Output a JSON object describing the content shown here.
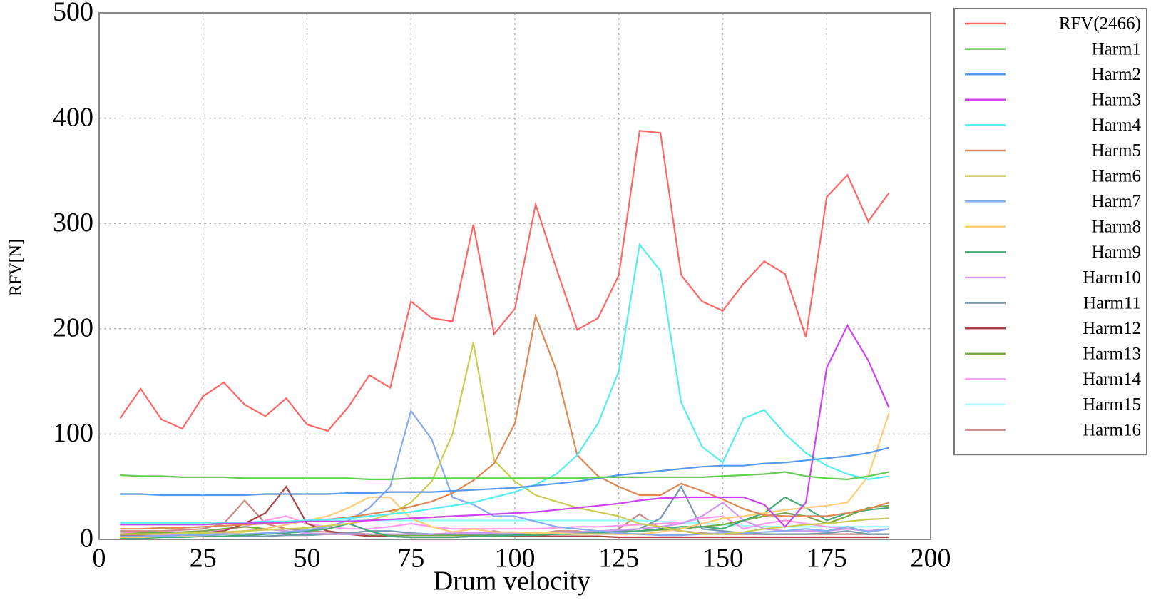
{
  "chart_data": {
    "type": "line",
    "x_label": "Drum velocity",
    "y_label": "RFV[N]",
    "x": [
      5,
      10,
      15,
      20,
      25,
      30,
      35,
      40,
      45,
      50,
      55,
      60,
      65,
      70,
      75,
      80,
      85,
      90,
      95,
      100,
      105,
      110,
      115,
      120,
      125,
      130,
      135,
      140,
      145,
      150,
      155,
      160,
      165,
      170,
      175,
      180,
      185,
      190
    ],
    "xlim": [
      0,
      200
    ],
    "xticks": [
      0,
      25,
      50,
      75,
      100,
      125,
      150,
      175,
      200
    ],
    "ylim": [
      0,
      500
    ],
    "yticks": [
      0,
      100,
      200,
      300,
      400,
      500
    ],
    "grid": true,
    "legend": "outside-right",
    "series": [
      {
        "name": "RFV(2466)",
        "color": "#ff6666",
        "values": [
          115,
          143,
          114,
          105,
          136,
          149,
          128,
          117,
          134,
          109,
          103,
          126,
          156,
          144,
          226,
          210,
          207,
          299,
          195,
          219,
          318,
          257,
          199,
          210,
          251,
          388,
          386,
          251,
          226,
          217,
          243,
          264,
          252,
          192,
          325,
          346,
          302,
          329
        ]
      },
      {
        "name": "Harm1",
        "color": "#66cc55",
        "values": [
          61,
          60,
          60,
          59,
          59,
          59,
          58,
          58,
          58,
          58,
          58,
          58,
          57,
          57,
          58,
          58,
          58,
          58,
          58,
          58,
          58,
          58,
          58,
          59,
          59,
          59,
          59,
          59,
          59,
          60,
          61,
          62,
          64,
          60,
          58,
          57,
          60,
          64
        ]
      },
      {
        "name": "Harm2",
        "color": "#5599ee",
        "values": [
          43,
          43,
          42,
          42,
          42,
          42,
          42,
          43,
          43,
          43,
          43,
          44,
          44,
          45,
          45,
          45,
          46,
          47,
          48,
          49,
          51,
          53,
          55,
          58,
          61,
          63,
          65,
          67,
          69,
          70,
          70,
          72,
          73,
          75,
          77,
          79,
          82,
          87
        ]
      },
      {
        "name": "Harm3",
        "color": "#cc44ee",
        "values": [
          14,
          14,
          14,
          14,
          14,
          15,
          15,
          16,
          16,
          17,
          17,
          17,
          18,
          19,
          20,
          21,
          22,
          23,
          24,
          25,
          26,
          28,
          30,
          32,
          34,
          37,
          39,
          40,
          40,
          40,
          40,
          33,
          12,
          35,
          163,
          203,
          170,
          125
        ]
      },
      {
        "name": "Harm4",
        "color": "#55eeee",
        "values": [
          16,
          16,
          16,
          16,
          16,
          16,
          16,
          17,
          17,
          18,
          19,
          20,
          22,
          24,
          26,
          29,
          32,
          35,
          40,
          45,
          52,
          62,
          80,
          110,
          160,
          280,
          255,
          130,
          88,
          73,
          115,
          123,
          100,
          82,
          70,
          62,
          57,
          60
        ]
      },
      {
        "name": "Harm5",
        "color": "#dd8855",
        "values": [
          10,
          10,
          11,
          11,
          12,
          13,
          14,
          15,
          16,
          18,
          19,
          21,
          24,
          27,
          31,
          36,
          44,
          56,
          72,
          110,
          212,
          160,
          80,
          60,
          50,
          42,
          42,
          53,
          46,
          38,
          29,
          23,
          22,
          22,
          22,
          25,
          29,
          35
        ]
      },
      {
        "name": "Harm6",
        "color": "#cccc55",
        "values": [
          5,
          5,
          5,
          6,
          6,
          7,
          8,
          9,
          10,
          11,
          13,
          15,
          18,
          24,
          35,
          55,
          100,
          187,
          75,
          55,
          42,
          36,
          30,
          26,
          22,
          15,
          12,
          8,
          5,
          5,
          7,
          10,
          12,
          14,
          15,
          17,
          19,
          20
        ]
      },
      {
        "name": "Harm7",
        "color": "#88aaee",
        "values": [
          3,
          3,
          3,
          4,
          4,
          5,
          5,
          6,
          7,
          9,
          12,
          18,
          30,
          50,
          122,
          95,
          40,
          33,
          22,
          22,
          17,
          12,
          10,
          8,
          6,
          5,
          4,
          4,
          5,
          6,
          6,
          7,
          8,
          10,
          8,
          12,
          7,
          10
        ]
      },
      {
        "name": "Harm8",
        "color": "#ffcc77",
        "values": [
          2,
          2,
          3,
          3,
          4,
          5,
          7,
          10,
          14,
          18,
          22,
          30,
          40,
          40,
          20,
          12,
          7,
          10,
          7,
          7,
          6,
          6,
          5,
          5,
          5,
          5,
          7,
          10,
          15,
          20,
          22,
          25,
          28,
          30,
          32,
          35,
          60,
          120
        ]
      },
      {
        "name": "Harm9",
        "color": "#44aa77",
        "values": [
          1,
          1,
          2,
          2,
          3,
          3,
          4,
          5,
          6,
          8,
          10,
          15,
          8,
          3,
          2,
          2,
          2,
          3,
          3,
          4,
          4,
          5,
          5,
          6,
          7,
          8,
          10,
          12,
          12,
          10,
          18,
          25,
          40,
          30,
          18,
          25,
          28,
          30
        ]
      },
      {
        "name": "Harm10",
        "color": "#cc99ee",
        "values": [
          3,
          3,
          4,
          4,
          5,
          6,
          8,
          10,
          8,
          6,
          5,
          5,
          5,
          5,
          5,
          5,
          6,
          6,
          6,
          6,
          6,
          7,
          7,
          8,
          9,
          10,
          12,
          15,
          22,
          35,
          18,
          10,
          8,
          8,
          8,
          10,
          8,
          10
        ]
      },
      {
        "name": "Harm11",
        "color": "#7799aa",
        "values": [
          2,
          2,
          2,
          3,
          3,
          3,
          3,
          3,
          4,
          4,
          5,
          6,
          8,
          8,
          6,
          5,
          5,
          5,
          5,
          5,
          5,
          5,
          6,
          6,
          8,
          10,
          20,
          50,
          10,
          8,
          6,
          5,
          5,
          5,
          6,
          8,
          5,
          5
        ]
      },
      {
        "name": "Harm12",
        "color": "#aa4444",
        "values": [
          4,
          4,
          5,
          5,
          6,
          8,
          15,
          25,
          50,
          15,
          8,
          5,
          3,
          3,
          2,
          2,
          2,
          3,
          3,
          3,
          3,
          3,
          3,
          3,
          2,
          2,
          2,
          2,
          2,
          2,
          2,
          2,
          2,
          2,
          2,
          2,
          2,
          2
        ]
      },
      {
        "name": "Harm13",
        "color": "#77aa44",
        "values": [
          5,
          6,
          6,
          7,
          8,
          10,
          12,
          10,
          8,
          6,
          5,
          5,
          4,
          4,
          4,
          4,
          4,
          4,
          4,
          5,
          5,
          5,
          6,
          6,
          7,
          8,
          9,
          10,
          12,
          14,
          18,
          22,
          25,
          22,
          15,
          22,
          30,
          32
        ]
      },
      {
        "name": "Harm14",
        "color": "#ff99ee",
        "values": [
          6,
          6,
          7,
          7,
          8,
          9,
          12,
          18,
          22,
          15,
          12,
          10,
          10,
          12,
          15,
          12,
          10,
          10,
          10,
          10,
          10,
          11,
          12,
          12,
          13,
          14,
          15,
          16,
          20,
          22,
          10,
          15,
          18,
          15,
          12,
          10,
          8,
          10
        ]
      },
      {
        "name": "Harm15",
        "color": "#99ffff",
        "values": [
          15,
          15,
          15,
          15,
          16,
          16,
          16,
          17,
          17,
          17,
          18,
          18,
          18,
          18,
          18,
          18,
          18,
          18,
          18,
          18,
          18,
          18,
          18,
          18,
          18,
          18,
          17,
          16,
          15,
          14,
          13,
          12,
          12,
          12,
          12,
          12,
          12,
          12
        ]
      },
      {
        "name": "Harm16",
        "color": "#cc8888",
        "values": [
          8,
          8,
          8,
          9,
          10,
          15,
          37,
          15,
          10,
          8,
          7,
          6,
          5,
          5,
          5,
          5,
          5,
          5,
          8,
          5,
          5,
          8,
          8,
          5,
          10,
          24,
          10,
          8,
          6,
          5,
          5,
          5,
          5,
          5,
          5,
          5,
          5,
          5
        ]
      }
    ]
  }
}
